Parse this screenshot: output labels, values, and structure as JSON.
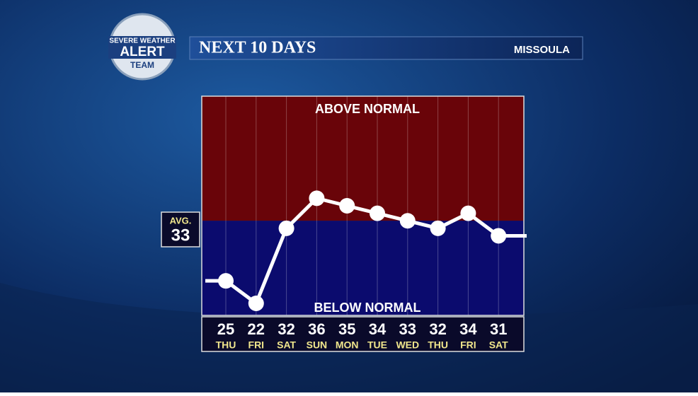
{
  "logo": {
    "line1": "SEVERE WEATHER",
    "line2": "ALERT",
    "line3": "TEAM"
  },
  "header": {
    "title": "NEXT 10 DAYS",
    "location": "MISSOULA"
  },
  "chart_data": {
    "type": "line",
    "categories": [
      "THU",
      "FRI",
      "SAT",
      "SUN",
      "MON",
      "TUE",
      "WED",
      "THU",
      "FRI",
      "SAT"
    ],
    "values": [
      25,
      22,
      32,
      36,
      35,
      34,
      33,
      32,
      34,
      31
    ],
    "color": "#ffffff",
    "average_label": "AVG.",
    "average": 33,
    "above_label": "ABOVE NORMAL",
    "below_label": "BELOW NORMAL",
    "above_color": "#690409",
    "below_color": "#0b0b6e",
    "ylim": [
      20.4,
      49.6
    ],
    "grid": true
  }
}
